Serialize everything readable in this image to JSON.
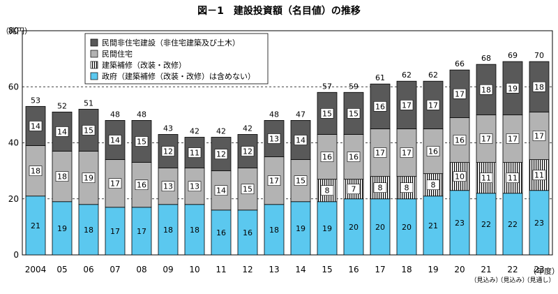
{
  "chart_data": {
    "type": "bar",
    "stacked": true,
    "title": "図－1　建設投資額（名目値）の推移",
    "ylabel": "（兆円）",
    "xlabel": "（年度）",
    "ylim": [
      0,
      80
    ],
    "yticks": [
      0,
      20,
      40,
      60,
      80
    ],
    "grid": "dashed horizontal lines at 20, 40, 60",
    "legend_position": "top-left",
    "categories": [
      "2004",
      "05",
      "06",
      "07",
      "08",
      "09",
      "10",
      "11",
      "12",
      "13",
      "14",
      "15",
      "16",
      "17",
      "18",
      "19",
      "20",
      "21",
      "22",
      "23"
    ],
    "category_notes": [
      "",
      "",
      "",
      "",
      "",
      "",
      "",
      "",
      "",
      "",
      "",
      "",
      "",
      "",
      "",
      "",
      "",
      "（見込み）",
      "（見込み）",
      "（見通し）"
    ],
    "series": [
      {
        "name": "政府（建築補修（改装・改修）は含めない）",
        "color": "#5bc8ef",
        "pattern": "solid",
        "values": [
          21,
          19,
          18,
          17,
          17,
          18,
          18,
          16,
          16,
          18,
          19,
          19,
          20,
          20,
          20,
          21,
          23,
          22,
          22,
          23
        ]
      },
      {
        "name": "建築補修（改装・改修）",
        "color": "#ffffff",
        "pattern": "vertical-stripes",
        "values": [
          0,
          0,
          0,
          0,
          0,
          0,
          0,
          0,
          0,
          0,
          0,
          8,
          7,
          8,
          8,
          8,
          10,
          11,
          11,
          11
        ]
      },
      {
        "name": "民間住宅",
        "color": "#b3b3b3",
        "pattern": "solid",
        "values": [
          18,
          18,
          19,
          17,
          16,
          13,
          13,
          14,
          15,
          17,
          15,
          16,
          16,
          17,
          17,
          16,
          16,
          17,
          17,
          17
        ]
      },
      {
        "name": "民間非住宅建設（非住宅建築及び土木）",
        "color": "#595959",
        "pattern": "solid",
        "values": [
          14,
          14,
          15,
          14,
          15,
          12,
          11,
          12,
          12,
          13,
          14,
          15,
          15,
          16,
          17,
          17,
          17,
          18,
          19,
          18
        ]
      }
    ],
    "totals": [
      53,
      52,
      51,
      48,
      48,
      43,
      42,
      42,
      42,
      48,
      47,
      57,
      59,
      61,
      62,
      62,
      66,
      68,
      69,
      70
    ]
  }
}
